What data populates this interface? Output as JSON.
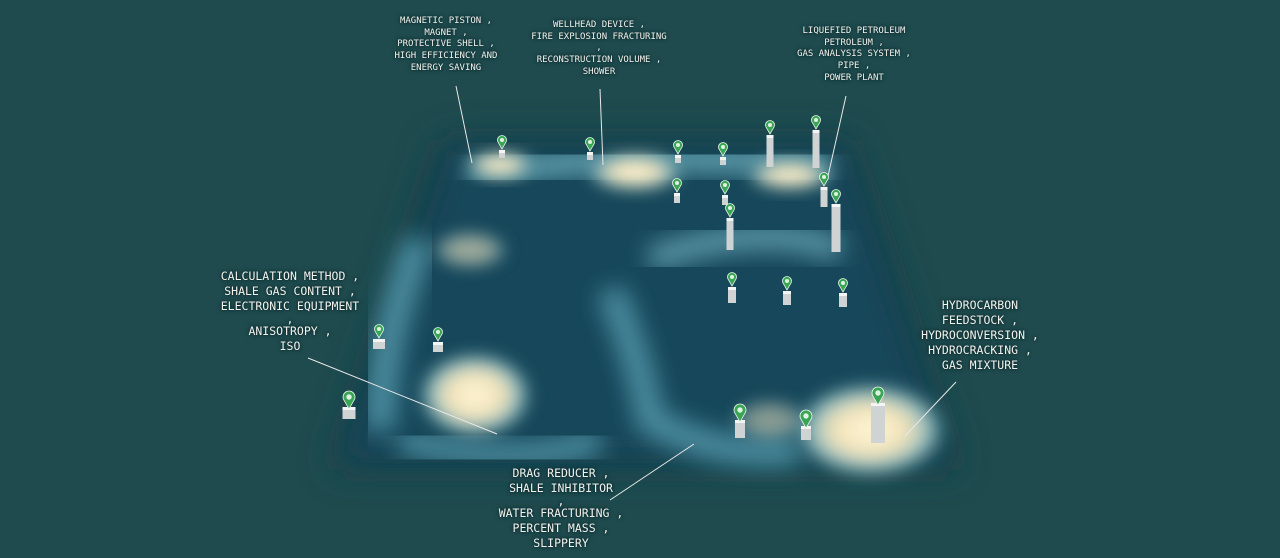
{
  "colors": {
    "background": "#1f4b4e",
    "terrain_low": "#0f3f4d",
    "terrain_mid": "#5a9aa8",
    "terrain_high": "#fff6d6",
    "marker": "#3aa655",
    "bar": "#cfd3d4",
    "leader_line": "#e8e8e8"
  },
  "markers": {
    "icon": "map-pin-icon",
    "count": 21
  },
  "labels": {
    "top_left": [
      "MAGNETIC PISTON ,",
      "MAGNET ,",
      "PROTECTIVE SHELL ,",
      "HIGH EFFICIENCY AND",
      "ENERGY SAVING"
    ],
    "top_center": [
      "WELLHEAD DEVICE ,",
      "FIRE EXPLOSION FRACTURING",
      ",",
      "RECONSTRUCTION VOLUME ,",
      "SHOWER"
    ],
    "top_right": [
      "LIQUEFIED PETROLEUM",
      "PETROLEUM ,",
      "GAS ANALYSIS SYSTEM ,",
      "PIPE ,",
      "POWER PLANT"
    ],
    "left": [
      "CALCULATION METHOD ,",
      "SHALE GAS CONTENT ,",
      "ELECTRONIC EQUIPMENT",
      ",",
      "ANISOTROPY ,",
      "ISO"
    ],
    "right": [
      "HYDROCARBON",
      "FEEDSTOCK ,",
      "HYDROCONVERSION ,",
      "HYDROCRACKING ,",
      "GAS MIXTURE"
    ],
    "bottom": [
      "DRAG REDUCER ,",
      "SHALE INHIBITOR",
      ",",
      "WATER FRACTURING ,",
      "PERCENT MASS ,",
      "SLIPPERY"
    ]
  }
}
